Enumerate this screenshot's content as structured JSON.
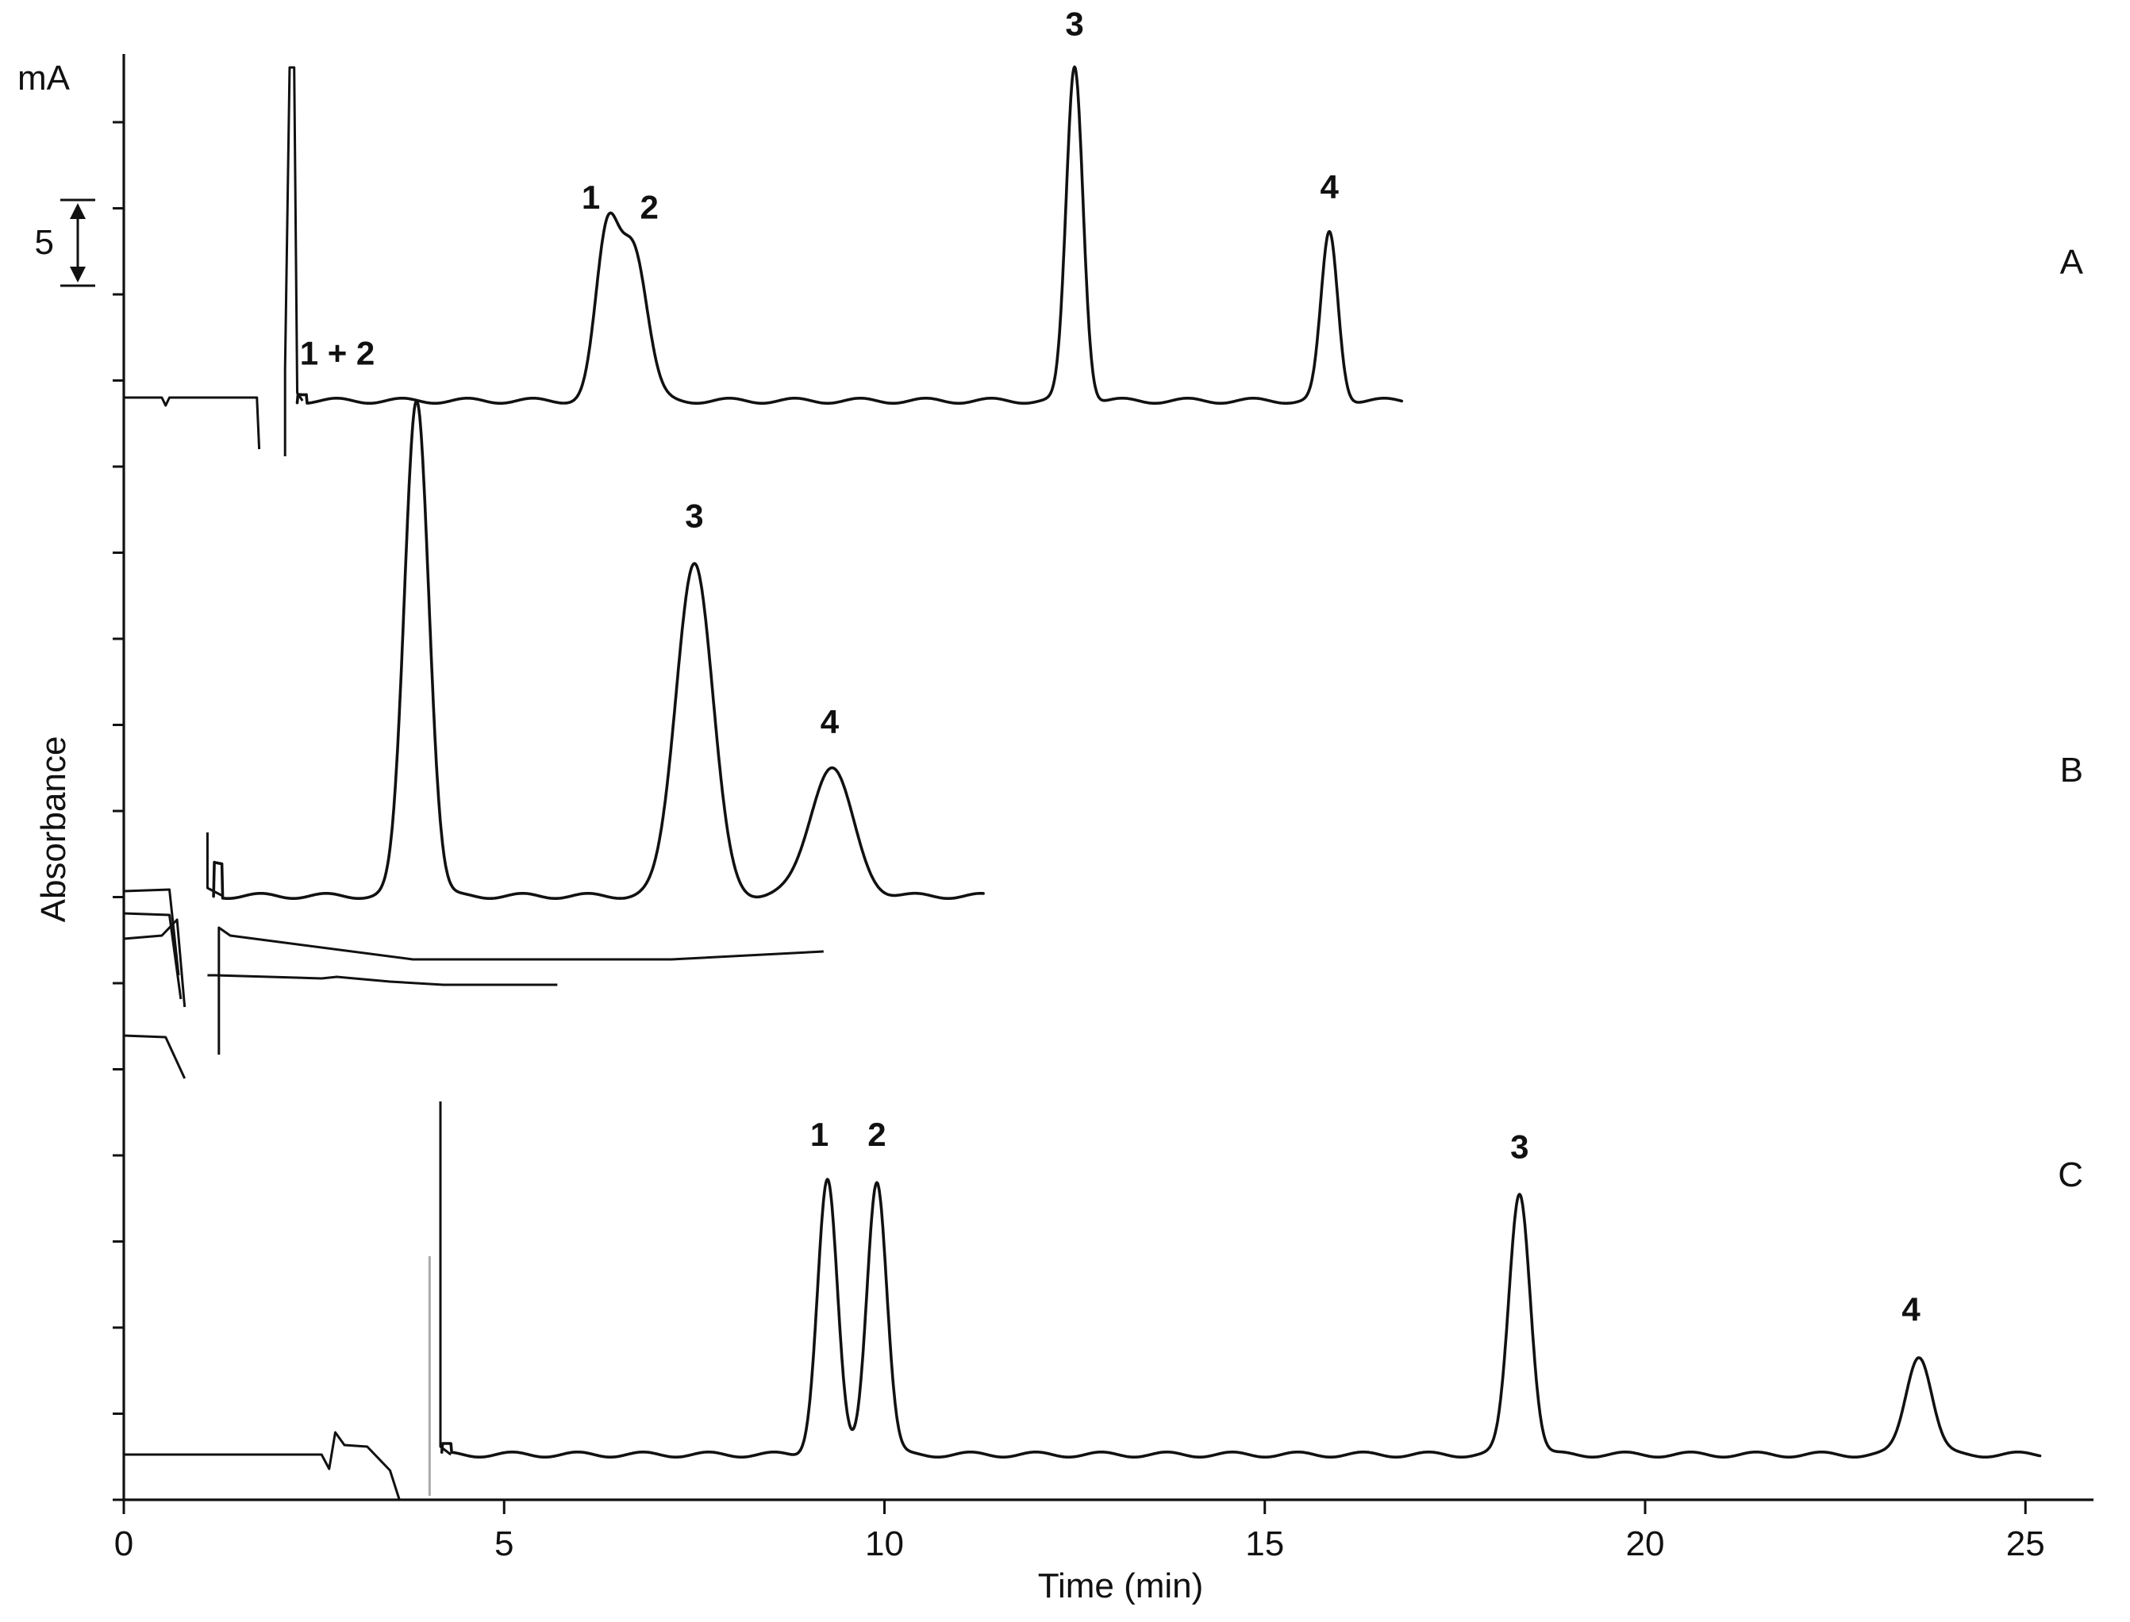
{
  "chart_data": {
    "type": "line",
    "title": "",
    "xlabel": "Time (min)",
    "ylabel": "Absorbance",
    "y_unit_label": "mA",
    "xlim": [
      0,
      26
    ],
    "x_ticks": [
      0,
      5,
      10,
      15,
      20,
      25
    ],
    "scale_bar": {
      "label": "5",
      "unit": "mA",
      "value": 5
    },
    "grid": false,
    "legend": "none",
    "series": [
      {
        "name": "A",
        "x_end": 16.8,
        "injection_time": 2.2,
        "peaks": [
          {
            "label": "1",
            "x": 6.35,
            "height": 9.2
          },
          {
            "label": "2",
            "x": 6.7,
            "height": 8.8
          },
          {
            "label": "3",
            "x": 12.5,
            "height": 19.5
          },
          {
            "label": "4",
            "x": 15.85,
            "height": 9.8
          }
        ]
      },
      {
        "name": "B",
        "x_end": 11.3,
        "injection_time": 1.1,
        "peaks": [
          {
            "label": "1 + 2",
            "x": 3.85,
            "height": 29.0
          },
          {
            "label": "3",
            "x": 7.5,
            "height": 19.5
          },
          {
            "label": "4",
            "x": 9.3,
            "height": 7.5
          }
        ]
      },
      {
        "name": "C",
        "x_end": 25.2,
        "injection_time": 4.1,
        "peaks": [
          {
            "label": "1",
            "x": 9.25,
            "height": 16.0
          },
          {
            "label": "2",
            "x": 9.9,
            "height": 16.0
          },
          {
            "label": "3",
            "x": 18.35,
            "height": 15.3
          },
          {
            "label": "4",
            "x": 23.6,
            "height": 5.8
          }
        ]
      }
    ]
  }
}
